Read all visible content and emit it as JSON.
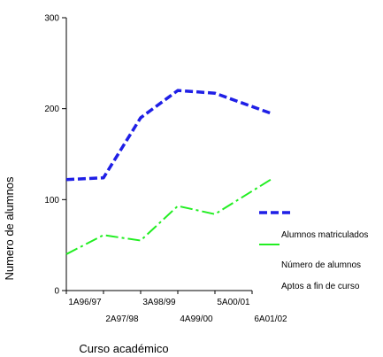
{
  "chart_data": {
    "type": "line",
    "xlabel": "Curso académico",
    "ylabel": "Numero de alumnos",
    "ylim": [
      0,
      300
    ],
    "yticks": [
      0,
      100,
      200,
      300
    ],
    "grid": false,
    "legend_position": "right",
    "categories": [
      "1A96/97",
      "2A97/98",
      "3A98/99",
      "4A99/00",
      "5A00/01",
      "6A01/02"
    ],
    "series": [
      {
        "name": "Alumnos matriculados",
        "color": "#1f1fe6",
        "dash": "dashed",
        "values": [
          122,
          124,
          190,
          220,
          217,
          195
        ]
      },
      {
        "name": "Número de alumnos Aptos a fin de curso",
        "color": "#22ee22",
        "dash": "dash-dot",
        "values": [
          40,
          61,
          55,
          93,
          84,
          122
        ]
      }
    ],
    "legend_lines": [
      "Alumnos matriculados",
      "Número de alumnos",
      "Aptos a fin de curso"
    ]
  }
}
